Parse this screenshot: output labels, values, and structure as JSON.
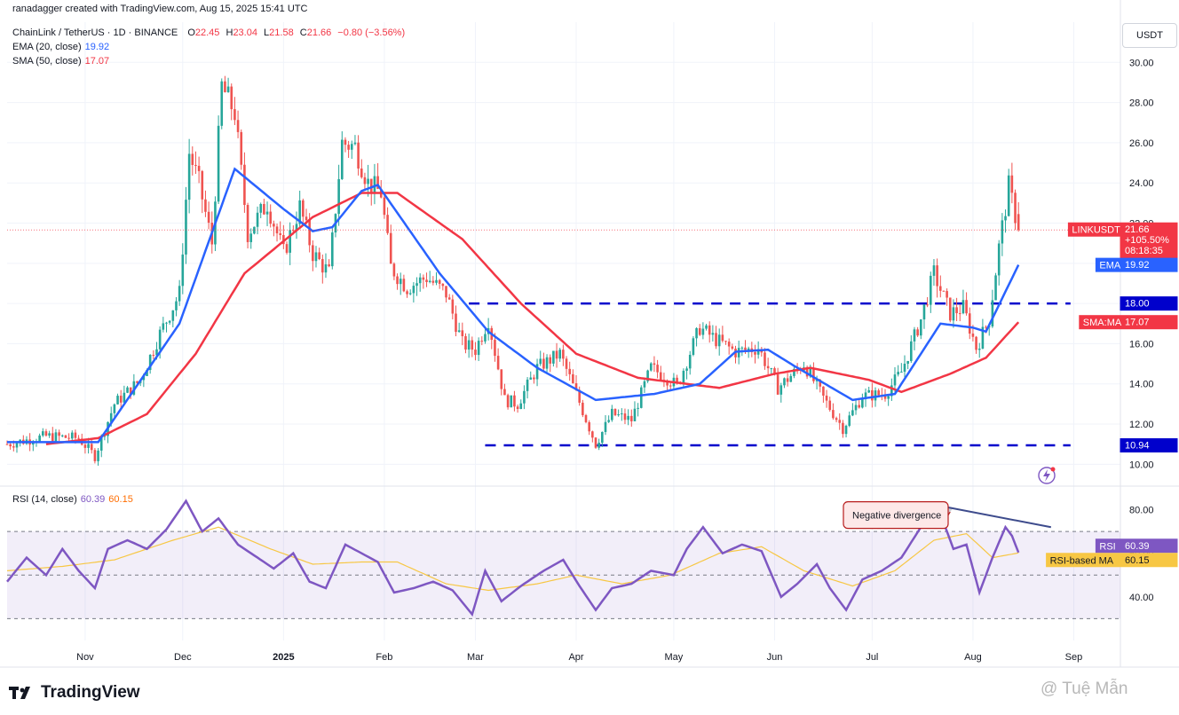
{
  "header": {
    "created_by": "ranadagger created with TradingView.com, Aug 15, 2025 15:41 UTC"
  },
  "symbol": {
    "name": "ChainLink / TetherUS · 1D · BINANCE",
    "open_label": "O",
    "open": "22.45",
    "high_label": "H",
    "high": "23.04",
    "low_label": "L",
    "low": "21.58",
    "close_label": "C",
    "close": "21.66",
    "change": "−0.80 (−3.56%)"
  },
  "indicators": {
    "ema_label": "EMA (20, close)",
    "ema_value": "19.92",
    "sma_label": "SMA (50, close)",
    "sma_value": "17.07",
    "rsi_label": "RSI (14, close)",
    "rsi_value": "60.39",
    "rsi_ma_value": "60.15"
  },
  "currency_button": "USDT",
  "price_tags": {
    "symbol": {
      "label": "LINKUSDT",
      "value": "21.66",
      "change": "+105.50%",
      "countdown": "08:18:35"
    },
    "ema": {
      "label": "EMA",
      "value": "19.92"
    },
    "level_high": {
      "value": "18.00"
    },
    "sma": {
      "label": "SMA:MA",
      "value": "17.07"
    },
    "level_low": {
      "value": "10.94"
    },
    "rsi": {
      "label": "RSI",
      "value": "60.39"
    },
    "rsi_ma": {
      "label": "RSI-based MA",
      "value": "60.15"
    }
  },
  "annotation": {
    "text": "Negative divergence"
  },
  "colors": {
    "up": "#26a69a",
    "down": "#ef5350",
    "ema": "#2962ff",
    "sma": "#f23645",
    "rsi": "#7e57c2",
    "rsi_ma": "#f7c744",
    "level": "#0000cc",
    "divergence": "#3d4b8c"
  },
  "brand": {
    "logo_text": "TradingView",
    "watermark": "@ Tuệ Mẫn"
  },
  "chart_data": {
    "type": "candlestick",
    "price_axis": {
      "ticks": [
        10,
        12,
        14,
        16,
        18,
        20,
        22,
        24,
        26,
        28,
        30
      ],
      "tick_labels": [
        "10.00",
        "12.00",
        "14.00",
        "16.00",
        "18.00",
        "20.00",
        "22.00",
        "24.00",
        "26.00",
        "28.00",
        "30.00"
      ],
      "range": [
        9.0,
        32.0
      ]
    },
    "time_axis": {
      "labels": [
        "Nov",
        "Dec",
        "2025",
        "Feb",
        "Mar",
        "Apr",
        "May",
        "Jun",
        "Jul",
        "Aug",
        "Sep"
      ],
      "label_dates": [
        "2024-11-01",
        "2024-12-01",
        "2025-01-01",
        "2025-02-01",
        "2025-03-01",
        "2025-04-01",
        "2025-05-01",
        "2025-06-01",
        "2025-07-01",
        "2025-08-01",
        "2025-09-01"
      ]
    },
    "levels": [
      {
        "price": 18.0,
        "from": "2025-02-27",
        "to": "2025-08-31"
      },
      {
        "price": 10.94,
        "from": "2025-03-04",
        "to": "2025-08-31"
      }
    ],
    "price_keyframes": [
      {
        "date": "2024-10-08",
        "close": 11.0
      },
      {
        "date": "2024-10-20",
        "close": 11.4
      },
      {
        "date": "2024-10-30",
        "close": 11.3
      },
      {
        "date": "2024-11-04",
        "close": 10.4
      },
      {
        "date": "2024-11-10",
        "close": 13.0
      },
      {
        "date": "2024-11-18",
        "close": 14.2
      },
      {
        "date": "2024-11-24",
        "close": 16.5
      },
      {
        "date": "2024-11-30",
        "close": 18.5
      },
      {
        "date": "2024-12-03",
        "close": 25.5
      },
      {
        "date": "2024-12-06",
        "close": 24.0
      },
      {
        "date": "2024-12-10",
        "close": 21.0
      },
      {
        "date": "2024-12-13",
        "close": 28.8
      },
      {
        "date": "2024-12-17",
        "close": 27.5
      },
      {
        "date": "2024-12-21",
        "close": 21.5
      },
      {
        "date": "2024-12-27",
        "close": 23.0
      },
      {
        "date": "2025-01-01",
        "close": 20.5
      },
      {
        "date": "2025-01-06",
        "close": 22.8
      },
      {
        "date": "2025-01-10",
        "close": 20.5
      },
      {
        "date": "2025-01-15",
        "close": 19.5
      },
      {
        "date": "2025-01-19",
        "close": 26.0
      },
      {
        "date": "2025-01-23",
        "close": 25.8
      },
      {
        "date": "2025-01-27",
        "close": 24.0
      },
      {
        "date": "2025-01-31",
        "close": 23.5
      },
      {
        "date": "2025-02-03",
        "close": 19.8
      },
      {
        "date": "2025-02-08",
        "close": 18.8
      },
      {
        "date": "2025-02-14",
        "close": 19.3
      },
      {
        "date": "2025-02-20",
        "close": 18.5
      },
      {
        "date": "2025-02-25",
        "close": 16.0
      },
      {
        "date": "2025-03-01",
        "close": 15.7
      },
      {
        "date": "2025-03-05",
        "close": 17.2
      },
      {
        "date": "2025-03-10",
        "close": 13.2
      },
      {
        "date": "2025-03-14",
        "close": 13.0
      },
      {
        "date": "2025-03-20",
        "close": 14.8
      },
      {
        "date": "2025-03-27",
        "close": 15.5
      },
      {
        "date": "2025-04-01",
        "close": 13.5
      },
      {
        "date": "2025-04-07",
        "close": 11.0
      },
      {
        "date": "2025-04-12",
        "close": 12.5
      },
      {
        "date": "2025-04-18",
        "close": 12.2
      },
      {
        "date": "2025-04-24",
        "close": 14.8
      },
      {
        "date": "2025-04-28",
        "close": 14.4
      },
      {
        "date": "2025-05-02",
        "close": 13.9
      },
      {
        "date": "2025-05-09",
        "close": 16.8
      },
      {
        "date": "2025-05-14",
        "close": 16.2
      },
      {
        "date": "2025-05-20",
        "close": 15.6
      },
      {
        "date": "2025-05-27",
        "close": 15.8
      },
      {
        "date": "2025-06-02",
        "close": 13.8
      },
      {
        "date": "2025-06-10",
        "close": 15.0
      },
      {
        "date": "2025-06-16",
        "close": 13.3
      },
      {
        "date": "2025-06-22",
        "close": 11.8
      },
      {
        "date": "2025-06-28",
        "close": 13.4
      },
      {
        "date": "2025-07-05",
        "close": 13.5
      },
      {
        "date": "2025-07-10",
        "close": 14.6
      },
      {
        "date": "2025-07-16",
        "close": 17.2
      },
      {
        "date": "2025-07-20",
        "close": 19.5
      },
      {
        "date": "2025-07-25",
        "close": 17.5
      },
      {
        "date": "2025-07-29",
        "close": 17.8
      },
      {
        "date": "2025-08-02",
        "close": 15.8
      },
      {
        "date": "2025-08-06",
        "close": 17.2
      },
      {
        "date": "2025-08-09",
        "close": 20.8
      },
      {
        "date": "2025-08-12",
        "close": 23.8
      },
      {
        "date": "2025-08-14",
        "close": 22.4
      },
      {
        "date": "2025-08-15",
        "close": 21.66
      }
    ],
    "ema20_keyframes": [
      {
        "date": "2024-10-08",
        "value": 11.1
      },
      {
        "date": "2024-11-05",
        "value": 11.1
      },
      {
        "date": "2024-11-30",
        "value": 17.0
      },
      {
        "date": "2024-12-17",
        "value": 24.7
      },
      {
        "date": "2025-01-01",
        "value": 22.7
      },
      {
        "date": "2025-01-10",
        "value": 21.6
      },
      {
        "date": "2025-01-16",
        "value": 21.8
      },
      {
        "date": "2025-01-25",
        "value": 23.6
      },
      {
        "date": "2025-01-30",
        "value": 23.9
      },
      {
        "date": "2025-02-18",
        "value": 19.5
      },
      {
        "date": "2025-03-05",
        "value": 16.6
      },
      {
        "date": "2025-03-20",
        "value": 14.8
      },
      {
        "date": "2025-04-07",
        "value": 13.2
      },
      {
        "date": "2025-04-25",
        "value": 13.5
      },
      {
        "date": "2025-05-09",
        "value": 14.0
      },
      {
        "date": "2025-05-20",
        "value": 15.6
      },
      {
        "date": "2025-05-30",
        "value": 15.7
      },
      {
        "date": "2025-06-07",
        "value": 14.9
      },
      {
        "date": "2025-06-25",
        "value": 13.2
      },
      {
        "date": "2025-07-08",
        "value": 13.5
      },
      {
        "date": "2025-07-22",
        "value": 17.0
      },
      {
        "date": "2025-08-01",
        "value": 16.8
      },
      {
        "date": "2025-08-05",
        "value": 16.6
      },
      {
        "date": "2025-08-15",
        "value": 19.92
      }
    ],
    "sma50_keyframes": [
      {
        "date": "2024-10-20",
        "value": 11.0
      },
      {
        "date": "2024-11-05",
        "value": 11.3
      },
      {
        "date": "2024-11-20",
        "value": 12.5
      },
      {
        "date": "2024-12-05",
        "value": 15.5
      },
      {
        "date": "2024-12-20",
        "value": 19.5
      },
      {
        "date": "2025-01-10",
        "value": 22.3
      },
      {
        "date": "2025-01-25",
        "value": 23.5
      },
      {
        "date": "2025-02-05",
        "value": 23.5
      },
      {
        "date": "2025-02-25",
        "value": 21.2
      },
      {
        "date": "2025-03-15",
        "value": 18.0
      },
      {
        "date": "2025-04-01",
        "value": 15.5
      },
      {
        "date": "2025-04-20",
        "value": 14.3
      },
      {
        "date": "2025-05-15",
        "value": 13.8
      },
      {
        "date": "2025-06-01",
        "value": 14.5
      },
      {
        "date": "2025-06-12",
        "value": 14.8
      },
      {
        "date": "2025-06-30",
        "value": 14.2
      },
      {
        "date": "2025-07-10",
        "value": 13.6
      },
      {
        "date": "2025-07-25",
        "value": 14.5
      },
      {
        "date": "2025-08-05",
        "value": 15.3
      },
      {
        "date": "2025-08-15",
        "value": 17.07
      }
    ],
    "rsi_axis": {
      "ticks": [
        40,
        60,
        80
      ],
      "tick_labels": [
        "40.00",
        "60.00",
        "80.00"
      ],
      "band": [
        30,
        70
      ],
      "range": [
        20,
        90
      ]
    },
    "rsi_keyframes": [
      {
        "date": "2024-10-08",
        "value": 47
      },
      {
        "date": "2024-10-14",
        "value": 58
      },
      {
        "date": "2024-10-20",
        "value": 50
      },
      {
        "date": "2024-10-25",
        "value": 62
      },
      {
        "date": "2024-10-30",
        "value": 52
      },
      {
        "date": "2024-11-04",
        "value": 44
      },
      {
        "date": "2024-11-08",
        "value": 62
      },
      {
        "date": "2024-11-14",
        "value": 66
      },
      {
        "date": "2024-11-20",
        "value": 62
      },
      {
        "date": "2024-11-26",
        "value": 71
      },
      {
        "date": "2024-12-02",
        "value": 84
      },
      {
        "date": "2024-12-07",
        "value": 70
      },
      {
        "date": "2024-12-12",
        "value": 76
      },
      {
        "date": "2024-12-18",
        "value": 64
      },
      {
        "date": "2024-12-24",
        "value": 58
      },
      {
        "date": "2024-12-29",
        "value": 53
      },
      {
        "date": "2025-01-04",
        "value": 60
      },
      {
        "date": "2025-01-09",
        "value": 47
      },
      {
        "date": "2025-01-14",
        "value": 44
      },
      {
        "date": "2025-01-20",
        "value": 64
      },
      {
        "date": "2025-01-25",
        "value": 60
      },
      {
        "date": "2025-01-30",
        "value": 56
      },
      {
        "date": "2025-02-04",
        "value": 42
      },
      {
        "date": "2025-02-10",
        "value": 44
      },
      {
        "date": "2025-02-16",
        "value": 47
      },
      {
        "date": "2025-02-22",
        "value": 43
      },
      {
        "date": "2025-02-28",
        "value": 32
      },
      {
        "date": "2025-03-04",
        "value": 52
      },
      {
        "date": "2025-03-09",
        "value": 38
      },
      {
        "date": "2025-03-15",
        "value": 45
      },
      {
        "date": "2025-03-22",
        "value": 52
      },
      {
        "date": "2025-03-28",
        "value": 57
      },
      {
        "date": "2025-04-02",
        "value": 45
      },
      {
        "date": "2025-04-07",
        "value": 34
      },
      {
        "date": "2025-04-12",
        "value": 44
      },
      {
        "date": "2025-04-18",
        "value": 46
      },
      {
        "date": "2025-04-24",
        "value": 52
      },
      {
        "date": "2025-05-01",
        "value": 50
      },
      {
        "date": "2025-05-05",
        "value": 62
      },
      {
        "date": "2025-05-10",
        "value": 72
      },
      {
        "date": "2025-05-16",
        "value": 60
      },
      {
        "date": "2025-05-22",
        "value": 64
      },
      {
        "date": "2025-05-28",
        "value": 61
      },
      {
        "date": "2025-06-03",
        "value": 40
      },
      {
        "date": "2025-06-08",
        "value": 46
      },
      {
        "date": "2025-06-14",
        "value": 55
      },
      {
        "date": "2025-06-18",
        "value": 44
      },
      {
        "date": "2025-06-23",
        "value": 34
      },
      {
        "date": "2025-06-28",
        "value": 48
      },
      {
        "date": "2025-07-04",
        "value": 52
      },
      {
        "date": "2025-07-10",
        "value": 58
      },
      {
        "date": "2025-07-16",
        "value": 72
      },
      {
        "date": "2025-07-21",
        "value": 82
      },
      {
        "date": "2025-07-26",
        "value": 62
      },
      {
        "date": "2025-07-30",
        "value": 64
      },
      {
        "date": "2025-08-03",
        "value": 42
      },
      {
        "date": "2025-08-07",
        "value": 58
      },
      {
        "date": "2025-08-11",
        "value": 72
      },
      {
        "date": "2025-08-13",
        "value": 68
      },
      {
        "date": "2025-08-15",
        "value": 60.39
      }
    ],
    "rsi_ma_keyframes": [
      {
        "date": "2024-10-08",
        "value": 52
      },
      {
        "date": "2024-10-25",
        "value": 54
      },
      {
        "date": "2024-11-10",
        "value": 57
      },
      {
        "date": "2024-11-28",
        "value": 66
      },
      {
        "date": "2024-12-12",
        "value": 72
      },
      {
        "date": "2024-12-28",
        "value": 62
      },
      {
        "date": "2025-01-10",
        "value": 55
      },
      {
        "date": "2025-01-25",
        "value": 56
      },
      {
        "date": "2025-02-05",
        "value": 56
      },
      {
        "date": "2025-02-20",
        "value": 46
      },
      {
        "date": "2025-03-05",
        "value": 43
      },
      {
        "date": "2025-03-20",
        "value": 46
      },
      {
        "date": "2025-04-01",
        "value": 50
      },
      {
        "date": "2025-04-15",
        "value": 46
      },
      {
        "date": "2025-04-30",
        "value": 50
      },
      {
        "date": "2025-05-15",
        "value": 60
      },
      {
        "date": "2025-05-28",
        "value": 63
      },
      {
        "date": "2025-06-10",
        "value": 52
      },
      {
        "date": "2025-06-25",
        "value": 45
      },
      {
        "date": "2025-07-08",
        "value": 52
      },
      {
        "date": "2025-07-20",
        "value": 66
      },
      {
        "date": "2025-07-30",
        "value": 69
      },
      {
        "date": "2025-08-07",
        "value": 58
      },
      {
        "date": "2025-08-15",
        "value": 60.15
      }
    ],
    "divergence_line": {
      "from": {
        "date": "2025-07-21",
        "value": 82
      },
      "to": {
        "date": "2025-08-25",
        "value": 72
      }
    }
  }
}
